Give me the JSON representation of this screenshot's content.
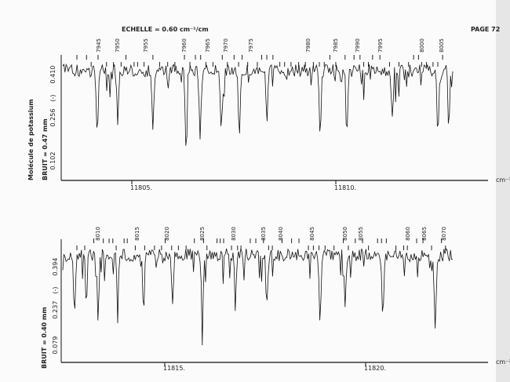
{
  "header": {
    "scale": "ECHELLE = 0.60 cm⁻¹/cm",
    "page": "PAGE 72"
  },
  "panels": [
    {
      "line_labels": [
        "7945",
        "7950",
        "7955",
        "7960",
        "7965",
        "7970",
        "7975",
        "7980",
        "7985",
        "7990",
        "7995",
        "8000",
        "8005"
      ],
      "y_labels": [
        "0.410",
        "0.256",
        "0.102"
      ],
      "y_unit": "(-)",
      "noise": "BRUIT = 0.47 mm",
      "molecule": "Molécule de potassium",
      "x_labels": [
        "11805.",
        "11810."
      ],
      "x_unit": "cm⁻¹"
    },
    {
      "line_labels": [
        "8010",
        "8015",
        "8020",
        "8025",
        "8030",
        "8035",
        "8040",
        "8045",
        "8050",
        "8055",
        "8060",
        "8065",
        "8070"
      ],
      "y_labels": [
        "0.394",
        "0.237",
        "0.079"
      ],
      "y_unit": "(-)",
      "noise": "BRUIT = 0.40 mm",
      "x_labels": [
        "11815.",
        "11820."
      ],
      "x_unit": "cm⁻¹"
    }
  ]
}
